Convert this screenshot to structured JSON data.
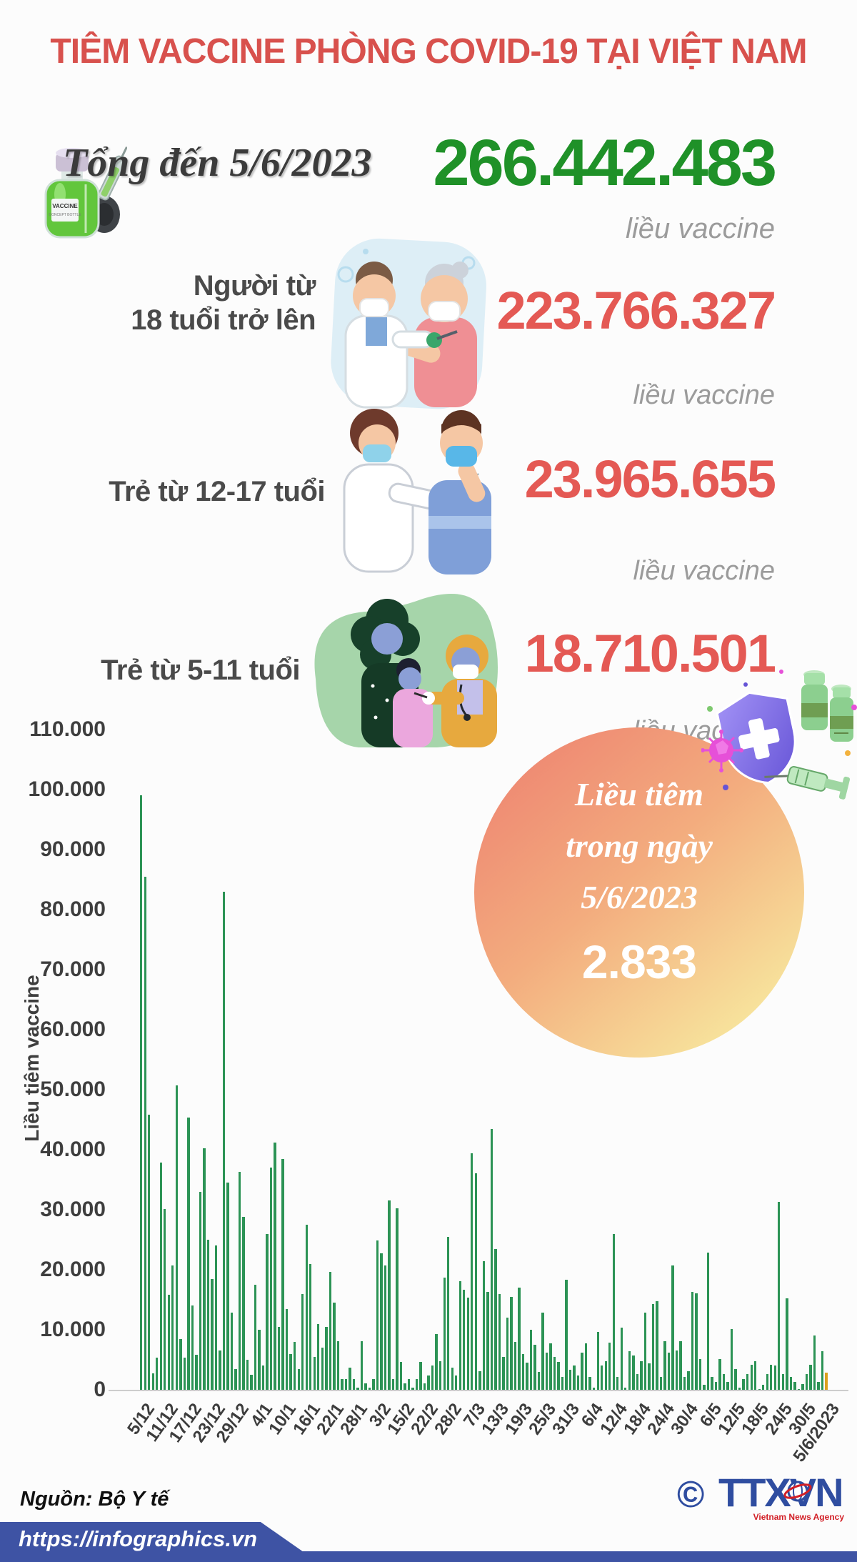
{
  "title": "TIÊM VACCINE PHÒNG COVID-19 TẠI VIỆT NAM",
  "summary": {
    "period_label": "Tổng đến 5/6/2023",
    "total_value": "266.442.483",
    "unit": "liều vaccine"
  },
  "groups": [
    {
      "label_line1": "Người từ",
      "label_line2": "18 tuổi trở lên",
      "value": "223.766.327",
      "unit": "liều vaccine"
    },
    {
      "label_line1": "Trẻ từ 12-17 tuổi",
      "label_line2": "",
      "value": "23.965.655",
      "unit": "liều vaccine"
    },
    {
      "label_line1": "Trẻ từ 5-11 tuổi",
      "label_line2": "",
      "value": "18.710.501",
      "unit": "liều vaccine"
    }
  ],
  "daily_badge": {
    "line1": "Liều tiêm",
    "line2": "trong ngày",
    "line3": "5/6/2023",
    "value": "2.833"
  },
  "chart_data": {
    "type": "bar",
    "ylabel": "Liều tiêm vaccine",
    "ylim": [
      0,
      110000
    ],
    "ytick_interval": 10000,
    "ytick_labels": [
      "0",
      "10.000",
      "20.000",
      "30.000",
      "40.000",
      "50.000",
      "60.000",
      "70.000",
      "80.000",
      "90.000",
      "100.000",
      "110.000"
    ],
    "x_labels": [
      "5/12",
      "11/12",
      "17/12",
      "23/12",
      "29/12",
      "4/1",
      "10/1",
      "16/1",
      "22/1",
      "28/1",
      "3/2",
      "15/2",
      "22/2",
      "28/2",
      "7/3",
      "13/3",
      "19/3",
      "25/3",
      "31/3",
      "6/4",
      "12/4",
      "18/4",
      "24/4",
      "30/4",
      "6/5",
      "12/5",
      "18/5",
      "24/5",
      "30/5",
      "5/6/2023"
    ],
    "x_label_every": 6,
    "grid": false,
    "legend": "none",
    "bar_color": "#2c9355",
    "highlight_color": "#dca01e",
    "highlight_index": 174,
    "values": [
      99000,
      85500,
      45800,
      2700,
      5400,
      37800,
      30100,
      15800,
      20700,
      50700,
      8400,
      5400,
      45400,
      14000,
      5800,
      33000,
      40200,
      25000,
      18500,
      24000,
      6500,
      83000,
      34500,
      12800,
      3500,
      36300,
      28800,
      5000,
      2500,
      17500,
      10000,
      4000,
      26000,
      37000,
      41200,
      10500,
      38500,
      13500,
      6000,
      8000,
      3500,
      16000,
      27500,
      21000,
      5500,
      11000,
      7000,
      10500,
      19600,
      14500,
      8100,
      1800,
      1800,
      3700,
      1800,
      400,
      8100,
      1100,
      400,
      1800,
      24900,
      22700,
      20700,
      31500,
      1800,
      30200,
      4600,
      1100,
      1800,
      400,
      1800,
      4600,
      1100,
      2400,
      4000,
      9300,
      4800,
      18700,
      25500,
      3700,
      2400,
      18100,
      16700,
      15400,
      39400,
      36100,
      3100,
      21400,
      16300,
      43500,
      23400,
      16000,
      5500,
      12000,
      15500,
      8000,
      17000,
      6000,
      4500,
      10000,
      7500,
      3000,
      12800,
      6200,
      7700,
      5500,
      4600,
      2200,
      18300,
      3300,
      4000,
      2400,
      6200,
      7700,
      2200,
      400,
      9700,
      4000,
      4800,
      7900,
      26000,
      2200,
      10400,
      400,
      6400,
      5700,
      2600,
      4800,
      12800,
      4400,
      14300,
      14800,
      2200,
      8100,
      6200,
      20700,
      6600,
      8100,
      2200,
      3100,
      16300,
      16100,
      5100,
      800,
      22900,
      2200,
      1300,
      5100,
      2600,
      1300,
      10100,
      3500,
      400,
      1800,
      2600,
      4200,
      4800,
      100,
      800,
      2600,
      4200,
      4000,
      31300,
      2600,
      15200,
      2200,
      1300,
      100,
      900,
      2600,
      4200,
      9000,
      1300,
      6400,
      2833
    ]
  },
  "footer": {
    "source": "Nguồn: Bộ Y tế",
    "url": "https://infographics.vn",
    "copyright": "©",
    "agency": "TTXVN",
    "agency_caption": "Vietnam News Agency"
  },
  "colors": {
    "accent_red": "#d8514d",
    "number_red": "#e45954",
    "number_green": "#1f9128",
    "muted_gray": "#9b9b9b",
    "bar_green": "#2c9355",
    "bar_highlight": "#dca01e",
    "banner_blue": "#3e53a4",
    "logo_blue": "#2f4da0",
    "logo_red": "#d21f26"
  }
}
